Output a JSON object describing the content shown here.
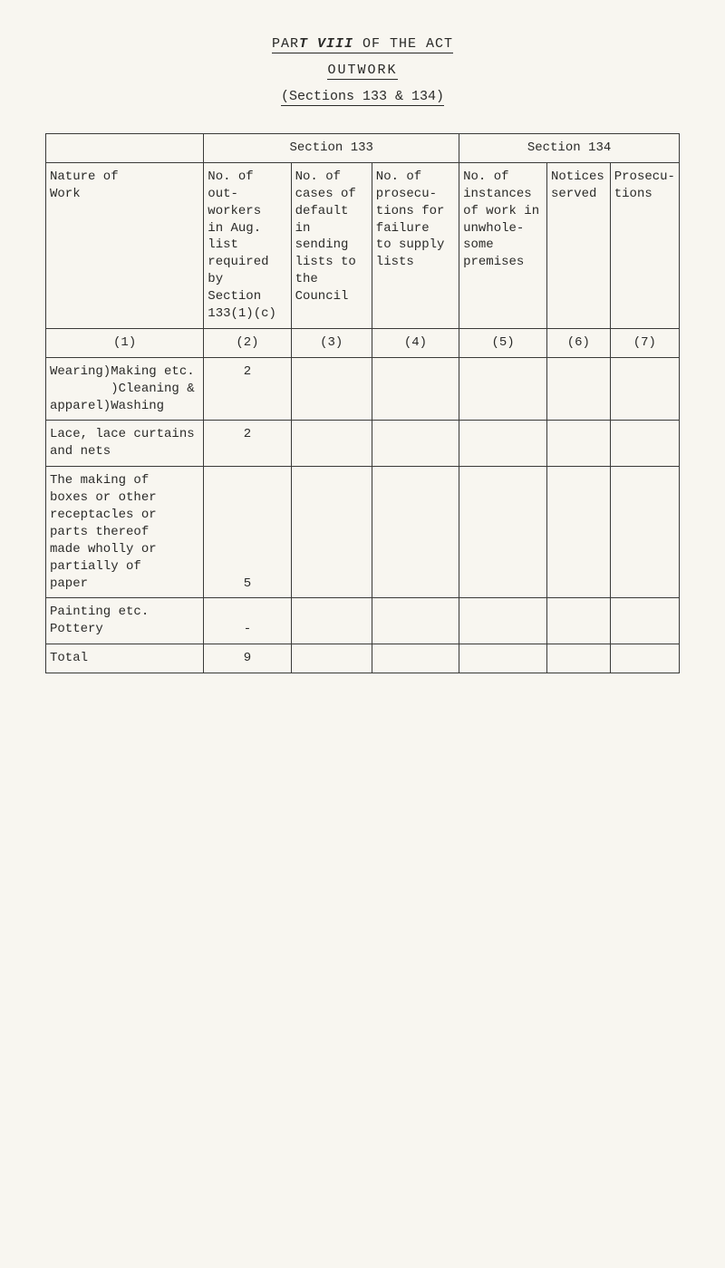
{
  "header": {
    "line1_prefix": "PAR",
    "line1_emph": "T VIII",
    "line1_suffix": " OF THE ACT",
    "line2": "OUTWORK",
    "line3": "(Sections 133 & 134)"
  },
  "table": {
    "top_left": "",
    "section133": "Section 133",
    "section134": "Section 134",
    "col1_head": "Nature of\nWork",
    "col2_head": "No. of\nout-\nworkers\nin Aug.\nlist\nrequired\nby\nSection\n133(1)(c)",
    "col3_head": "No. of\ncases of\ndefault\nin\nsending\nlists to\nthe\nCouncil",
    "col4_head": "No. of\nprosecu-\ntions for\nfailure\nto supply\nlists",
    "col5_head": "No. of\ninstances\nof work in\nunwhole-\nsome\npremises",
    "col6_head": "Notices\nserved",
    "col7_head": "Prosecu-\ntions",
    "numrow": [
      "(1)",
      "(2)",
      "(3)",
      "(4)",
      "(5)",
      "(6)",
      "(7)"
    ],
    "rows": [
      {
        "label": "Wearing)Making etc.\n        )Cleaning &\napparel)Washing",
        "v": "2"
      },
      {
        "label": "Lace, lace curtains\nand nets",
        "v": "2"
      },
      {
        "label": "The making of\nboxes or other\nreceptacles or\nparts thereof\nmade wholly or\npartially of\npaper",
        "v": "5"
      },
      {
        "label": "Painting etc.\nPottery",
        "v": "-"
      }
    ],
    "total_label": "Total",
    "total_value": "9"
  }
}
